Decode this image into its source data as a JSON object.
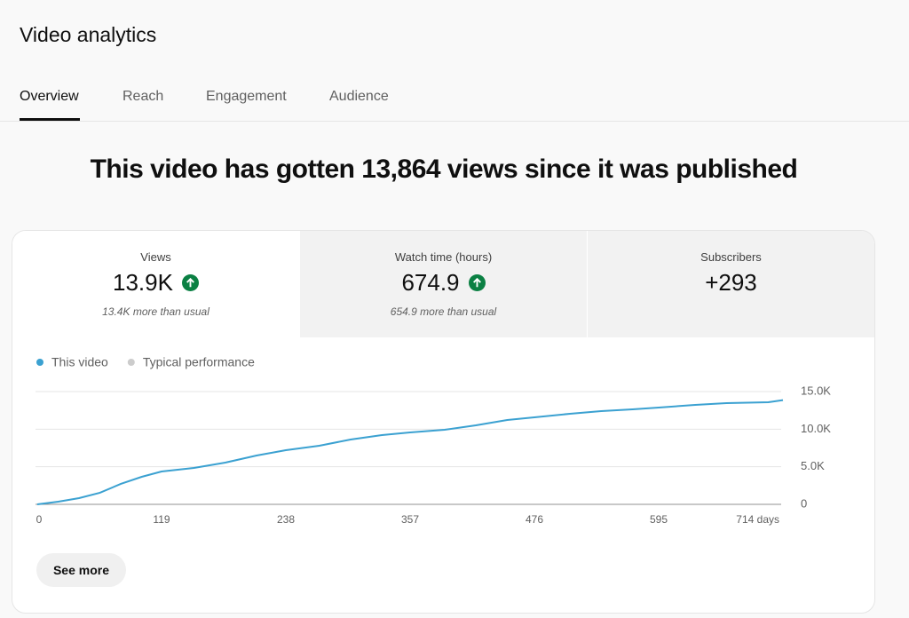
{
  "header": {
    "title": "Video analytics"
  },
  "tabs": [
    "Overview",
    "Reach",
    "Engagement",
    "Audience"
  ],
  "headline": "This video has gotten 13,864 views since it was published",
  "metrics": [
    {
      "label": "Views",
      "value": "13.9K",
      "note": "13.4K more than usual"
    },
    {
      "label": "Watch time (hours)",
      "value": "674.9",
      "note": "654.9 more than usual"
    },
    {
      "label": "Subscribers",
      "value": "+293"
    }
  ],
  "chart_data": {
    "type": "line",
    "x": [
      0,
      20,
      40,
      60,
      80,
      100,
      119,
      150,
      180,
      210,
      238,
      270,
      300,
      330,
      357,
      390,
      420,
      450,
      476,
      510,
      540,
      570,
      595,
      630,
      660,
      700,
      714
    ],
    "series": [
      {
        "name": "This video",
        "color": "#3ba1d1",
        "values": [
          0,
          350,
          830,
          1540,
          2720,
          3660,
          4370,
          4840,
          5550,
          6500,
          7200,
          7800,
          8620,
          9210,
          9570,
          9920,
          10510,
          11220,
          11570,
          12050,
          12400,
          12640,
          12870,
          13230,
          13460,
          13580,
          13864
        ]
      },
      {
        "name": "Typical performance",
        "color": "#cccccc"
      }
    ],
    "xlim": [
      0,
      714
    ],
    "xticks": [
      0,
      119,
      238,
      357,
      476,
      595,
      {
        "value": 714,
        "label": "714 days"
      }
    ],
    "ylim": [
      0,
      15000
    ],
    "yticks": [
      0,
      {
        "value": 5000,
        "label": "5.0K"
      },
      {
        "value": 10000,
        "label": "10.0K"
      },
      {
        "value": 15000,
        "label": "15.0K"
      }
    ],
    "grid": true
  },
  "button": "See more"
}
